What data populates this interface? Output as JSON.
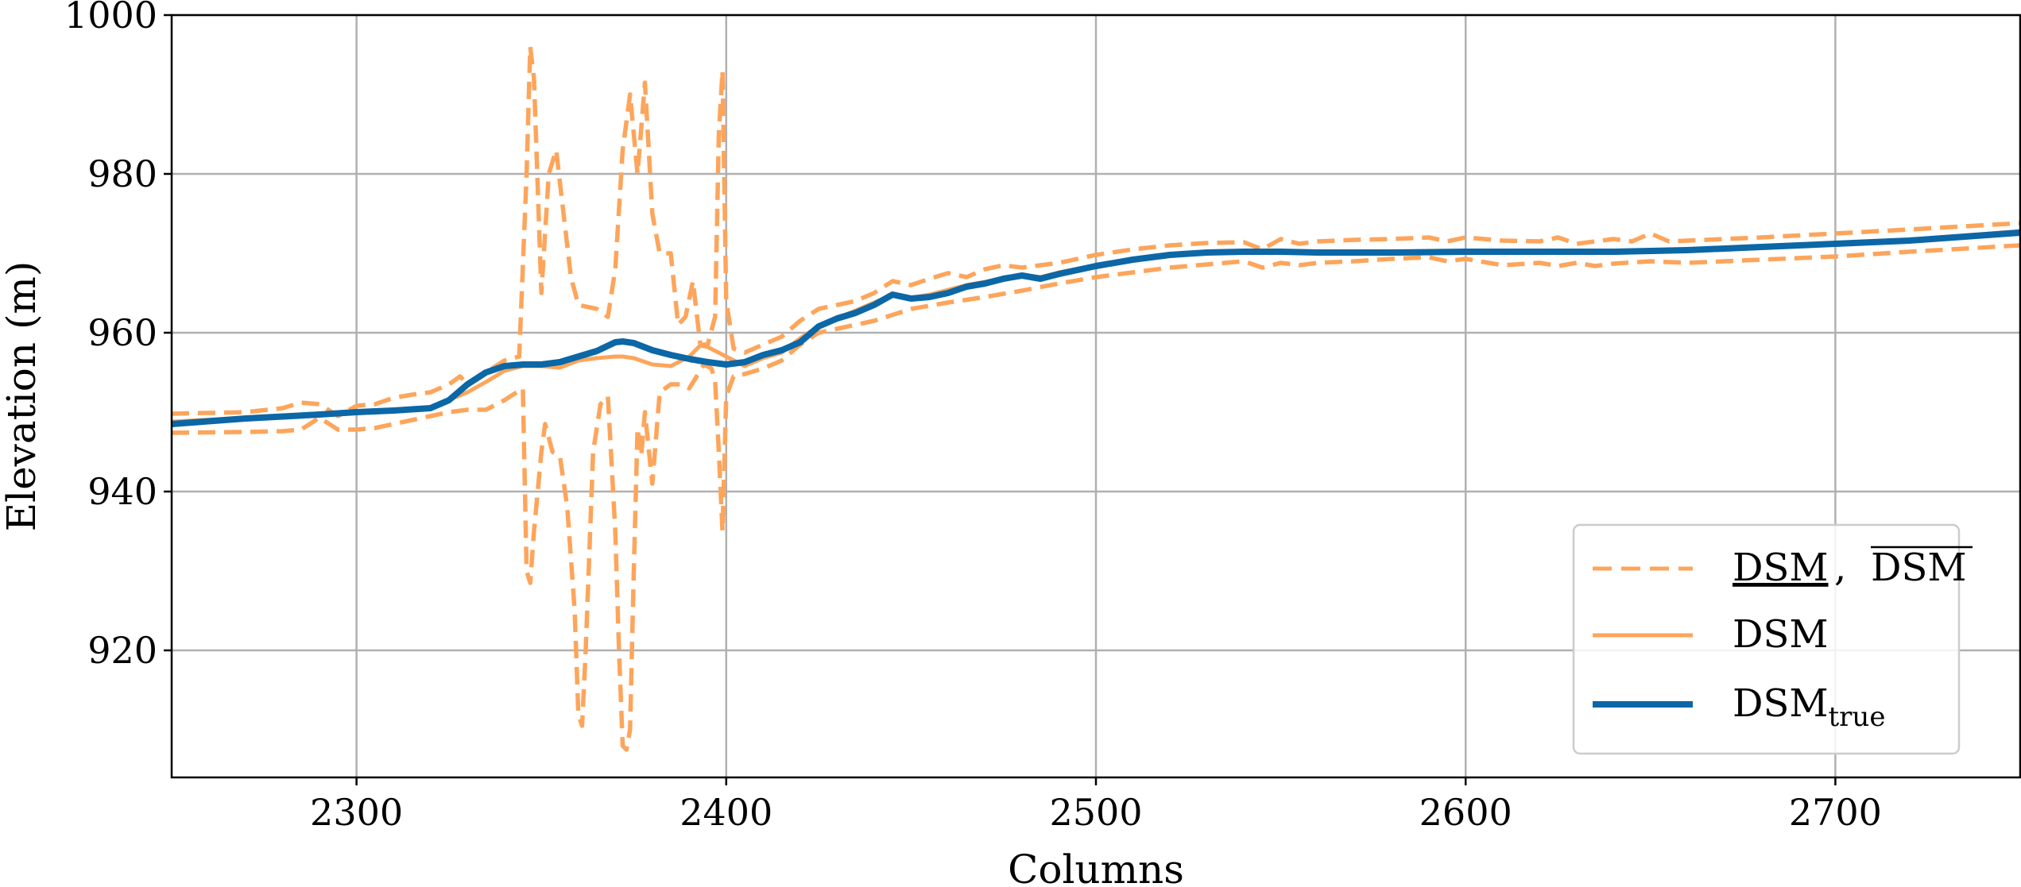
{
  "chart_data": {
    "type": "line",
    "xlabel": "Columns",
    "ylabel": "Elevation (m)",
    "xlim": [
      2250,
      2750
    ],
    "ylim": [
      904,
      1000
    ],
    "xticks": [
      2300,
      2400,
      2500,
      2600,
      2700
    ],
    "yticks": [
      920,
      940,
      960,
      980,
      1000
    ],
    "grid": true,
    "legend_position": "bottom-right",
    "colors": {
      "orange": "#fda55b",
      "blue": "#0b67a6"
    },
    "legend": {
      "bounds_label": "DSM, DSM",
      "bounds_label_lower": "DSM",
      "bounds_label_sep": ",",
      "bounds_label_upper": "DSM",
      "mean_label": "DSM",
      "true_label": "DSM",
      "true_subscript": "true"
    },
    "series": [
      {
        "name": "DSM_true",
        "legend": "DSMtrue",
        "style": "solid-thick",
        "color": "#0b67a6",
        "x": [
          2250,
          2270,
          2290,
          2300,
          2310,
          2320,
          2325,
          2330,
          2335,
          2340,
          2345,
          2350,
          2355,
          2360,
          2365,
          2370,
          2372,
          2375,
          2380,
          2385,
          2390,
          2395,
          2400,
          2405,
          2410,
          2415,
          2420,
          2425,
          2430,
          2435,
          2440,
          2445,
          2450,
          2455,
          2460,
          2465,
          2470,
          2475,
          2480,
          2485,
          2490,
          2500,
          2510,
          2520,
          2530,
          2540,
          2550,
          2560,
          2580,
          2600,
          2620,
          2640,
          2660,
          2680,
          2700,
          2720,
          2750
        ],
        "y": [
          948.5,
          949.2,
          949.7,
          950,
          950.2,
          950.5,
          951.5,
          953.5,
          955,
          955.8,
          956.0,
          956.0,
          956.3,
          957.0,
          957.7,
          958.8,
          958.9,
          958.7,
          957.8,
          957.2,
          956.7,
          956.3,
          956.0,
          956.3,
          957.2,
          957.8,
          958.8,
          960.8,
          961.8,
          962.5,
          963.5,
          964.8,
          964.3,
          964.5,
          965.0,
          965.8,
          966.2,
          966.8,
          967.2,
          966.8,
          967.4,
          968.4,
          969.2,
          969.8,
          970.1,
          970.2,
          970.2,
          970.1,
          970.1,
          970.2,
          970.2,
          970.2,
          970.4,
          970.8,
          971.2,
          971.6,
          972.6
        ]
      },
      {
        "name": "DSM",
        "legend": "DSM",
        "style": "solid",
        "color": "#fda55b",
        "x": [
          2250,
          2270,
          2290,
          2300,
          2310,
          2320,
          2330,
          2335,
          2340,
          2345,
          2350,
          2355,
          2360,
          2365,
          2370,
          2372,
          2375,
          2380,
          2385,
          2390,
          2393,
          2395,
          2400,
          2405,
          2410,
          2415,
          2420,
          2425,
          2430,
          2435,
          2440,
          2445,
          2450,
          2455,
          2460,
          2465,
          2470,
          2475,
          2480,
          2485,
          2490,
          2500,
          2510,
          2520,
          2530,
          2540,
          2550,
          2560,
          2580,
          2600,
          2620,
          2640,
          2660,
          2680,
          2700,
          2720,
          2750
        ],
        "y": [
          948.8,
          949.3,
          949.8,
          950,
          950.2,
          950.6,
          952.5,
          953.8,
          955.2,
          955.8,
          955.8,
          955.6,
          956.5,
          956.8,
          957.0,
          957.0,
          956.8,
          956.0,
          955.8,
          957.0,
          958.4,
          958.2,
          957.0,
          955.8,
          956.8,
          957.5,
          959.3,
          960.8,
          961.8,
          962.8,
          963.8,
          964.8,
          964.4,
          964.8,
          965.4,
          966.0,
          966.4,
          966.9,
          967.2,
          967.0,
          967.6,
          968.5,
          969.2,
          969.7,
          970.0,
          970.2,
          970.2,
          970.1,
          970.2,
          970.3,
          970.2,
          970.3,
          970.5,
          970.9,
          971.2,
          971.7,
          972.8
        ]
      },
      {
        "name": "DSM_upper",
        "legend": "upper bound",
        "style": "dashed",
        "color": "#fda55b",
        "x": [
          2250,
          2270,
          2280,
          2285,
          2290,
          2295,
          2300,
          2305,
          2310,
          2315,
          2320,
          2325,
          2328,
          2330,
          2335,
          2340,
          2344,
          2346,
          2347,
          2348,
          2350,
          2352,
          2354,
          2356,
          2358,
          2360,
          2365,
          2368,
          2370,
          2372,
          2374,
          2376,
          2378,
          2380,
          2382,
          2385,
          2387,
          2389,
          2391,
          2393,
          2395,
          2397,
          2398,
          2399,
          2400,
          2402,
          2405,
          2410,
          2415,
          2420,
          2425,
          2430,
          2435,
          2440,
          2445,
          2450,
          2455,
          2460,
          2465,
          2470,
          2475,
          2480,
          2490,
          2500,
          2510,
          2520,
          2530,
          2540,
          2545,
          2550,
          2555,
          2560,
          2570,
          2580,
          2590,
          2595,
          2600,
          2610,
          2620,
          2625,
          2630,
          2635,
          2640,
          2645,
          2650,
          2655,
          2660,
          2680,
          2700,
          2720,
          2750
        ],
        "y": [
          949.8,
          950.0,
          950.5,
          951.2,
          951.0,
          949.5,
          950.8,
          951.0,
          951.8,
          952.2,
          952.5,
          953.5,
          954.5,
          953.5,
          955.0,
          956.5,
          957.0,
          980.0,
          996.0,
          992.0,
          965.0,
          980.0,
          983.0,
          975.0,
          967.0,
          963.5,
          963.0,
          962.0,
          968.0,
          983.0,
          990.0,
          980.0,
          991.5,
          975.0,
          970.0,
          970.0,
          961.0,
          962.0,
          966.5,
          958.5,
          958.5,
          962.0,
          985.0,
          993.0,
          964.0,
          958.0,
          957.5,
          958.5,
          959.5,
          961.5,
          963.0,
          963.5,
          964.0,
          965.0,
          966.5,
          966.0,
          966.8,
          967.5,
          967.0,
          968.0,
          968.5,
          968.2,
          968.8,
          969.8,
          970.5,
          971.0,
          971.3,
          971.4,
          970.5,
          971.8,
          971.2,
          971.5,
          971.7,
          971.8,
          972.0,
          971.5,
          972.0,
          971.6,
          971.5,
          972.0,
          971.2,
          971.5,
          971.8,
          971.5,
          972.5,
          971.5,
          971.6,
          972.0,
          972.5,
          973.0,
          973.8
        ]
      },
      {
        "name": "DSM_lower",
        "legend": "lower bound",
        "style": "dashed",
        "color": "#fda55b",
        "x": [
          2250,
          2270,
          2280,
          2285,
          2290,
          2295,
          2300,
          2305,
          2310,
          2315,
          2320,
          2325,
          2330,
          2335,
          2340,
          2345,
          2346,
          2347,
          2348,
          2350,
          2351,
          2353,
          2355,
          2357,
          2359,
          2360,
          2361,
          2362,
          2364,
          2366,
          2368,
          2370,
          2371,
          2372,
          2373,
          2374,
          2375,
          2376,
          2377,
          2378,
          2380,
          2382,
          2385,
          2388,
          2390,
          2392,
          2394,
          2396,
          2397,
          2398,
          2399,
          2400,
          2402,
          2405,
          2410,
          2415,
          2420,
          2425,
          2430,
          2440,
          2450,
          2460,
          2470,
          2480,
          2490,
          2500,
          2510,
          2520,
          2530,
          2540,
          2545,
          2550,
          2555,
          2560,
          2570,
          2580,
          2590,
          2595,
          2600,
          2610,
          2620,
          2625,
          2630,
          2635,
          2640,
          2650,
          2660,
          2680,
          2700,
          2720,
          2750
        ],
        "y": [
          947.4,
          947.5,
          947.6,
          947.8,
          949.3,
          947.8,
          947.8,
          948.0,
          948.5,
          949.0,
          949.5,
          950.0,
          950.3,
          950.3,
          951.5,
          953.0,
          930.0,
          928.5,
          935.0,
          945.0,
          948.5,
          945.0,
          944.5,
          938.0,
          925.0,
          912.0,
          910.5,
          920.0,
          945.0,
          951.0,
          952.0,
          935.0,
          920.0,
          908.0,
          907.5,
          910.0,
          930.0,
          948.0,
          944.5,
          950.0,
          941.0,
          952.5,
          953.5,
          953.5,
          953.0,
          954.5,
          956.0,
          955.5,
          954.0,
          945.0,
          935.0,
          952.0,
          954.5,
          954.8,
          955.5,
          956.5,
          958.5,
          960.0,
          960.5,
          961.5,
          963.0,
          963.8,
          964.5,
          965.3,
          966.2,
          967.0,
          967.6,
          968.2,
          968.6,
          969.0,
          968.2,
          968.8,
          968.5,
          968.8,
          969.0,
          969.3,
          969.5,
          969.0,
          969.3,
          968.5,
          968.8,
          968.4,
          968.8,
          968.4,
          968.7,
          969.0,
          968.8,
          969.2,
          969.6,
          970.2,
          971.0
        ]
      }
    ]
  }
}
